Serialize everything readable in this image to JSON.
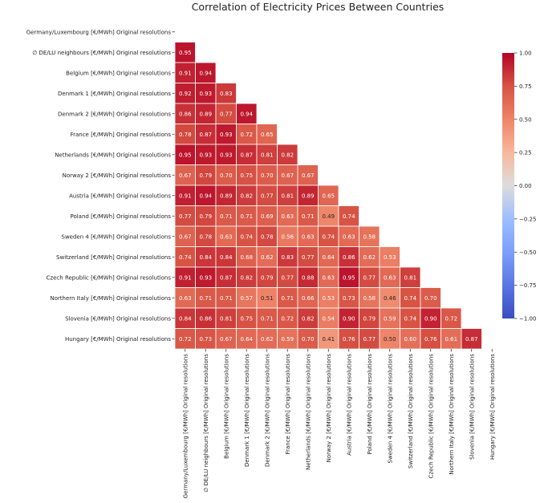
{
  "chart_data": {
    "type": "heatmap",
    "title": "Correlation of Electricity Prices Between Countries",
    "xlabel": "",
    "ylabel": "",
    "mask": "upper-triangle-including-diagonal",
    "colormap": "coolwarm",
    "vmin": -1.0,
    "vmax": 1.0,
    "colorbar": {
      "ticks": [
        "1.00",
        "0.75",
        "0.50",
        "0.25",
        "0.00",
        "−0.25",
        "−0.50",
        "−0.75",
        "−1.00"
      ],
      "tick_values": [
        1.0,
        0.75,
        0.5,
        0.25,
        0.0,
        -0.25,
        -0.5,
        -0.75,
        -1.0
      ],
      "placement": "right"
    },
    "labels": [
      "Germany/Luxembourg [€/MWh] Original resolutions",
      "∅ DE/LU neighbours [€/MWh] Original resolutions",
      "Belgium [€/MWh] Original resolutions",
      "Denmark 1 [€/MWh] Original resolutions",
      "Denmark 2 [€/MWh] Original resolutions",
      "France [€/MWh] Original resolutions",
      "Netherlands [€/MWh] Original resolutions",
      "Norway 2 [€/MWh] Original resolutions",
      "Austria [€/MWh] Original resolutions",
      "Poland [€/MWh] Original resolutions",
      "Sweden 4 [€/MWh] Original resolutions",
      "Switzerland [€/MWh] Original resolutions",
      "Czech Republic [€/MWh] Original resolutions",
      "Northern Italy [€/MWh] Original resolutions",
      "Slovenia [€/MWh] Original resolutions",
      "Hungary [€/MWh] Original resolutions"
    ],
    "values": [
      [],
      [
        0.95
      ],
      [
        0.91,
        0.94
      ],
      [
        0.92,
        0.93,
        0.83
      ],
      [
        0.86,
        0.89,
        0.77,
        0.94
      ],
      [
        0.78,
        0.87,
        0.93,
        0.72,
        0.65
      ],
      [
        0.95,
        0.93,
        0.93,
        0.87,
        0.81,
        0.82
      ],
      [
        0.67,
        0.79,
        0.7,
        0.75,
        0.7,
        0.67,
        0.67
      ],
      [
        0.91,
        0.94,
        0.89,
        0.82,
        0.77,
        0.81,
        0.89,
        0.65
      ],
      [
        0.77,
        0.79,
        0.71,
        0.71,
        0.69,
        0.63,
        0.71,
        0.49,
        0.74
      ],
      [
        0.67,
        0.78,
        0.63,
        0.74,
        0.78,
        0.56,
        0.63,
        0.74,
        0.63,
        0.58
      ],
      [
        0.74,
        0.84,
        0.84,
        0.68,
        0.62,
        0.83,
        0.77,
        0.64,
        0.86,
        0.62,
        0.53
      ],
      [
        0.91,
        0.93,
        0.87,
        0.82,
        0.79,
        0.77,
        0.88,
        0.63,
        0.95,
        0.77,
        0.63,
        0.81
      ],
      [
        0.63,
        0.71,
        0.71,
        0.57,
        0.51,
        0.71,
        0.66,
        0.53,
        0.73,
        0.58,
        0.46,
        0.74,
        0.7
      ],
      [
        0.84,
        0.86,
        0.81,
        0.75,
        0.71,
        0.72,
        0.82,
        0.54,
        0.9,
        0.79,
        0.59,
        0.74,
        0.9,
        0.72
      ],
      [
        0.72,
        0.73,
        0.67,
        0.64,
        0.62,
        0.59,
        0.7,
        0.41,
        0.76,
        0.77,
        0.5,
        0.6,
        0.76,
        0.61,
        0.87
      ]
    ],
    "annotation_format": "0.00",
    "grid": false
  }
}
